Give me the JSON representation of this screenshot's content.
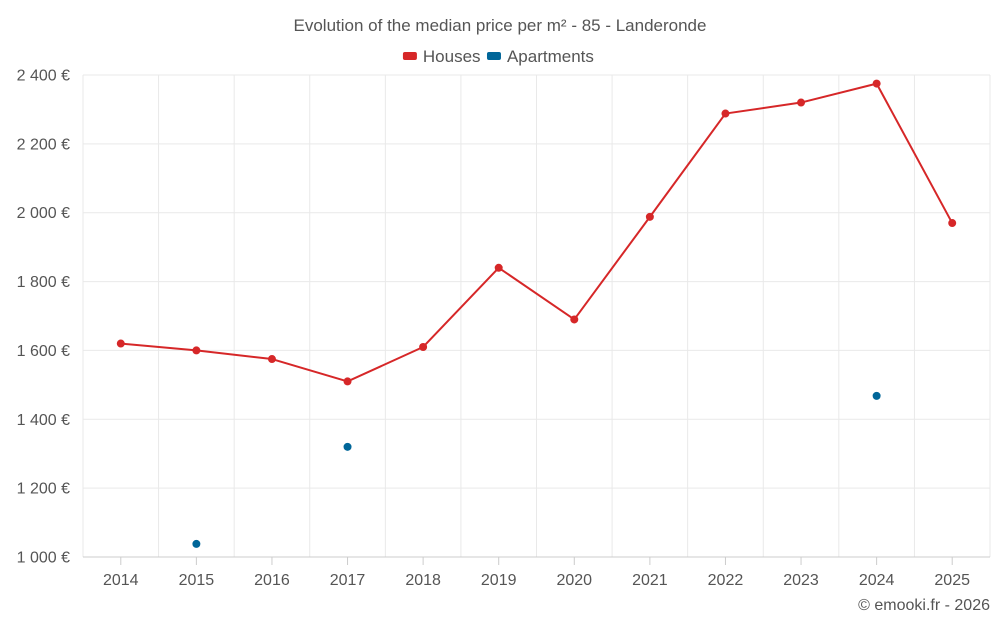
{
  "chart_data": {
    "type": "line",
    "title": "Evolution of the median price per m² - 85 - Landeronde",
    "categories": [
      "2014",
      "2015",
      "2016",
      "2017",
      "2018",
      "2019",
      "2020",
      "2021",
      "2022",
      "2023",
      "2024",
      "2025"
    ],
    "series": [
      {
        "name": "Houses",
        "color": "#d62728",
        "style": "line",
        "values": [
          1620,
          1600,
          1575,
          1510,
          1610,
          1840,
          1690,
          1988,
          2288,
          2320,
          2375,
          1970
        ]
      },
      {
        "name": "Apartments",
        "color": "#006699",
        "style": "points",
        "values": [
          null,
          1038,
          null,
          1320,
          null,
          null,
          null,
          null,
          null,
          null,
          1468,
          null
        ]
      }
    ],
    "ylim": [
      1000,
      2400
    ],
    "yticks": [
      1000,
      1200,
      1400,
      1600,
      1800,
      2000,
      2200,
      2400
    ],
    "ytick_labels": [
      "1 000 €",
      "1 200 €",
      "1 400 €",
      "1 600 €",
      "1 800 €",
      "2 000 €",
      "2 200 €",
      "2 400 €"
    ],
    "xlabel": "",
    "ylabel": "",
    "grid": true,
    "legend_position": "top-center"
  },
  "credit": "© emooki.fr - 2026"
}
